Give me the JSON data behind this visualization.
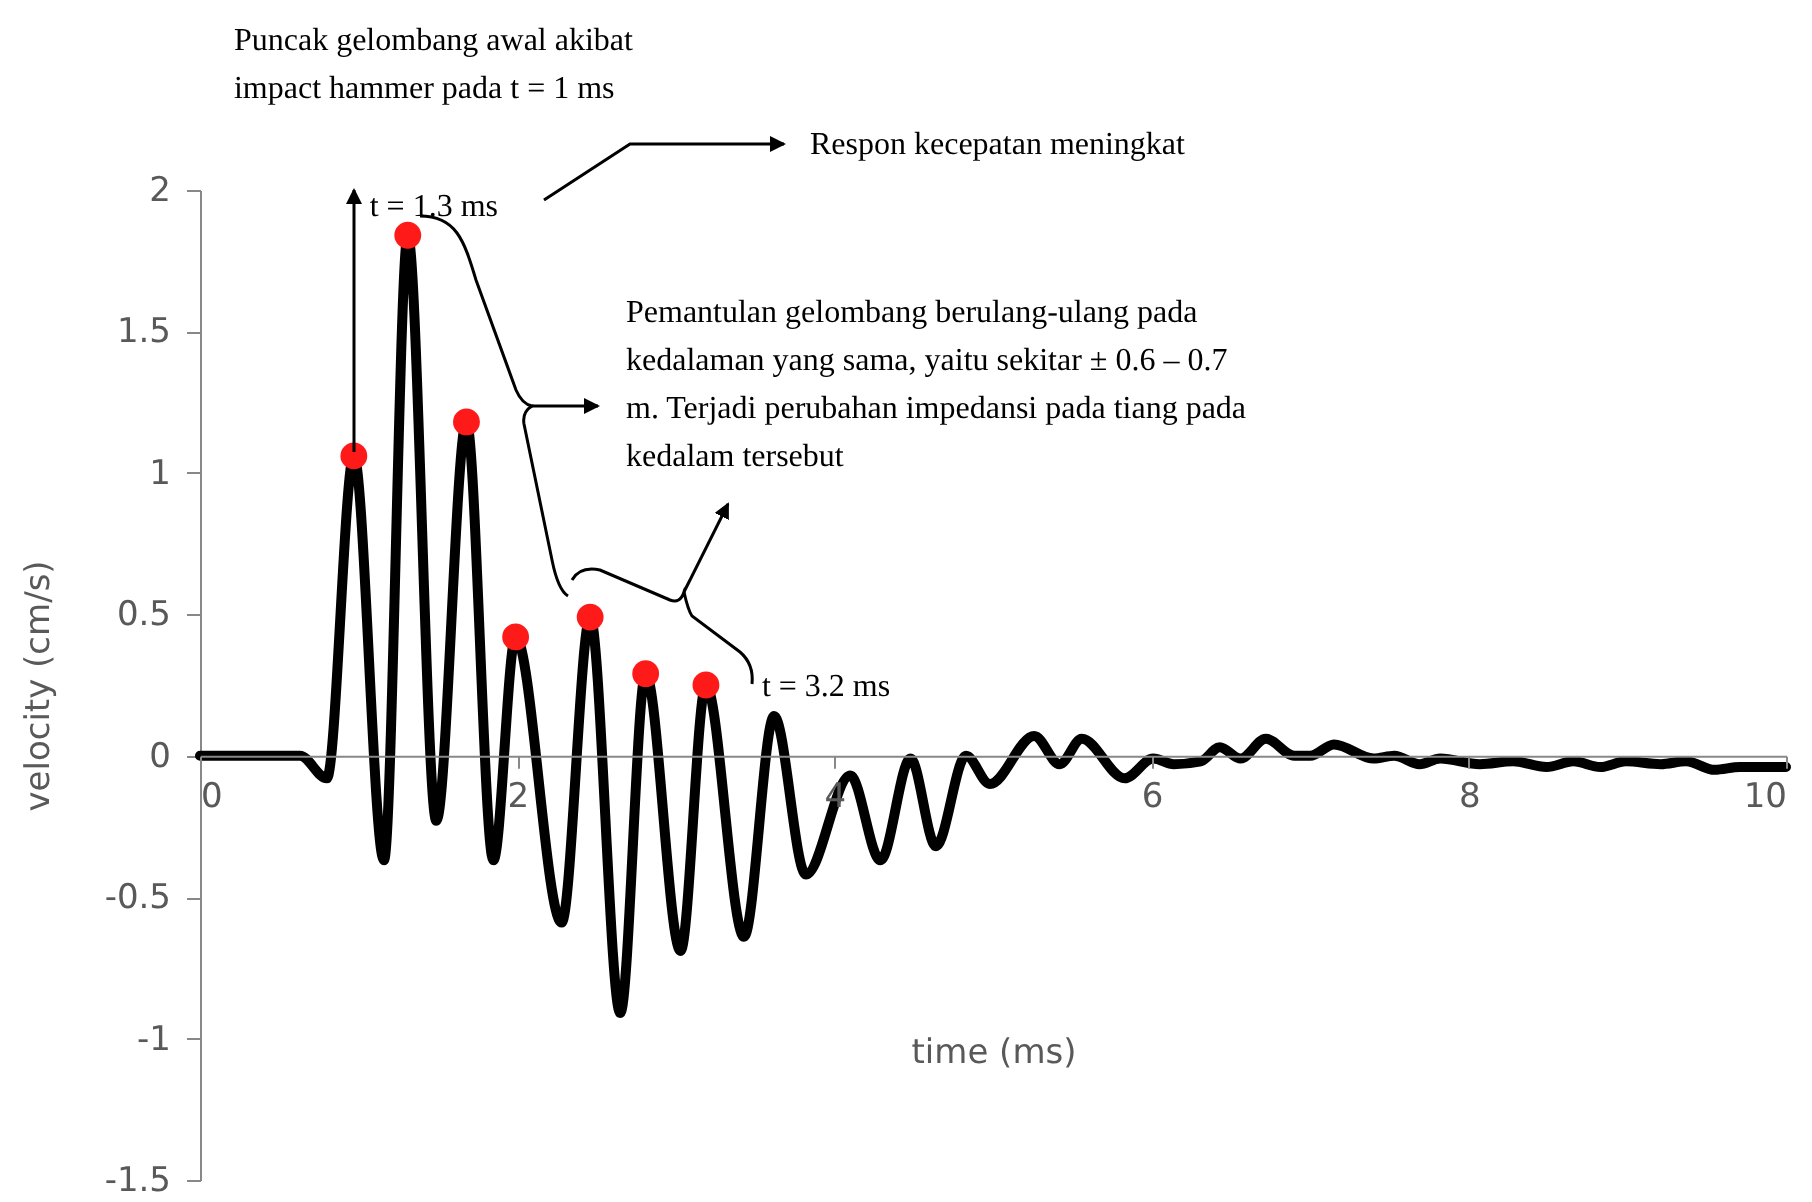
{
  "chart_data": {
    "type": "line",
    "xlabel": "time (ms)",
    "ylabel": "velocity (cm/s)",
    "xlim": [
      0,
      10
    ],
    "ylim": [
      -1.5,
      2
    ],
    "xticks": [
      0,
      2,
      4,
      6,
      8,
      10
    ],
    "yticks": [
      -1.5,
      -1,
      -0.5,
      0,
      0.5,
      1,
      1.5,
      2
    ],
    "grid": false,
    "series": [
      {
        "color": "#000000",
        "x": [
          0,
          0.63,
          0.8,
          0.97,
          1.16,
          1.31,
          1.49,
          1.68,
          1.85,
          1.99,
          2.28,
          2.46,
          2.65,
          2.81,
          3.03,
          3.19,
          3.43,
          3.62,
          3.82,
          4.1,
          4.29,
          4.48,
          4.64,
          4.83,
          4.98,
          5.26,
          5.42,
          5.56,
          5.83,
          6.01,
          6.14,
          6.31,
          6.43,
          6.56,
          6.72,
          6.9,
          7.0,
          7.15,
          7.4,
          7.53,
          7.69,
          7.82,
          8.07,
          8.28,
          8.49,
          8.66,
          8.83,
          8.99,
          9.21,
          9.37,
          9.55,
          9.71,
          10
        ],
        "values": [
          0,
          0,
          -0.08,
          1.06,
          -0.37,
          1.84,
          -0.23,
          1.18,
          -0.37,
          0.42,
          -0.59,
          0.49,
          -0.91,
          0.29,
          -0.69,
          0.25,
          -0.64,
          0.14,
          -0.42,
          -0.07,
          -0.37,
          -0.01,
          -0.32,
          0.0,
          -0.1,
          0.07,
          -0.03,
          0.06,
          -0.08,
          -0.01,
          -0.03,
          -0.02,
          0.03,
          -0.01,
          0.06,
          0.0,
          0.0,
          0.04,
          -0.01,
          0.0,
          -0.03,
          -0.01,
          -0.03,
          -0.02,
          -0.04,
          -0.02,
          -0.04,
          -0.02,
          -0.03,
          -0.02,
          -0.05,
          -0.04,
          -0.04
        ]
      },
      {
        "type": "scatter",
        "color": "#ff1a1a",
        "x": [
          0.97,
          1.31,
          1.68,
          1.99,
          2.46,
          2.81,
          3.19
        ],
        "values": [
          1.06,
          1.84,
          1.18,
          0.42,
          0.49,
          0.29,
          0.25
        ]
      }
    ],
    "annotations": [
      "Puncak gelombang awal akibat impact hammer pada t = 1 ms",
      "t = 1.3 ms",
      "Respon kecepatan meningkat",
      "Pemantulan gelombang berulang-ulang pada kedalaman yang sama, yaitu sekitar ± 0.6 – 0.7 m. Terjadi perubahan impedansi pada tiang pada kedalam tersebut",
      "t = 3.2 ms"
    ]
  }
}
